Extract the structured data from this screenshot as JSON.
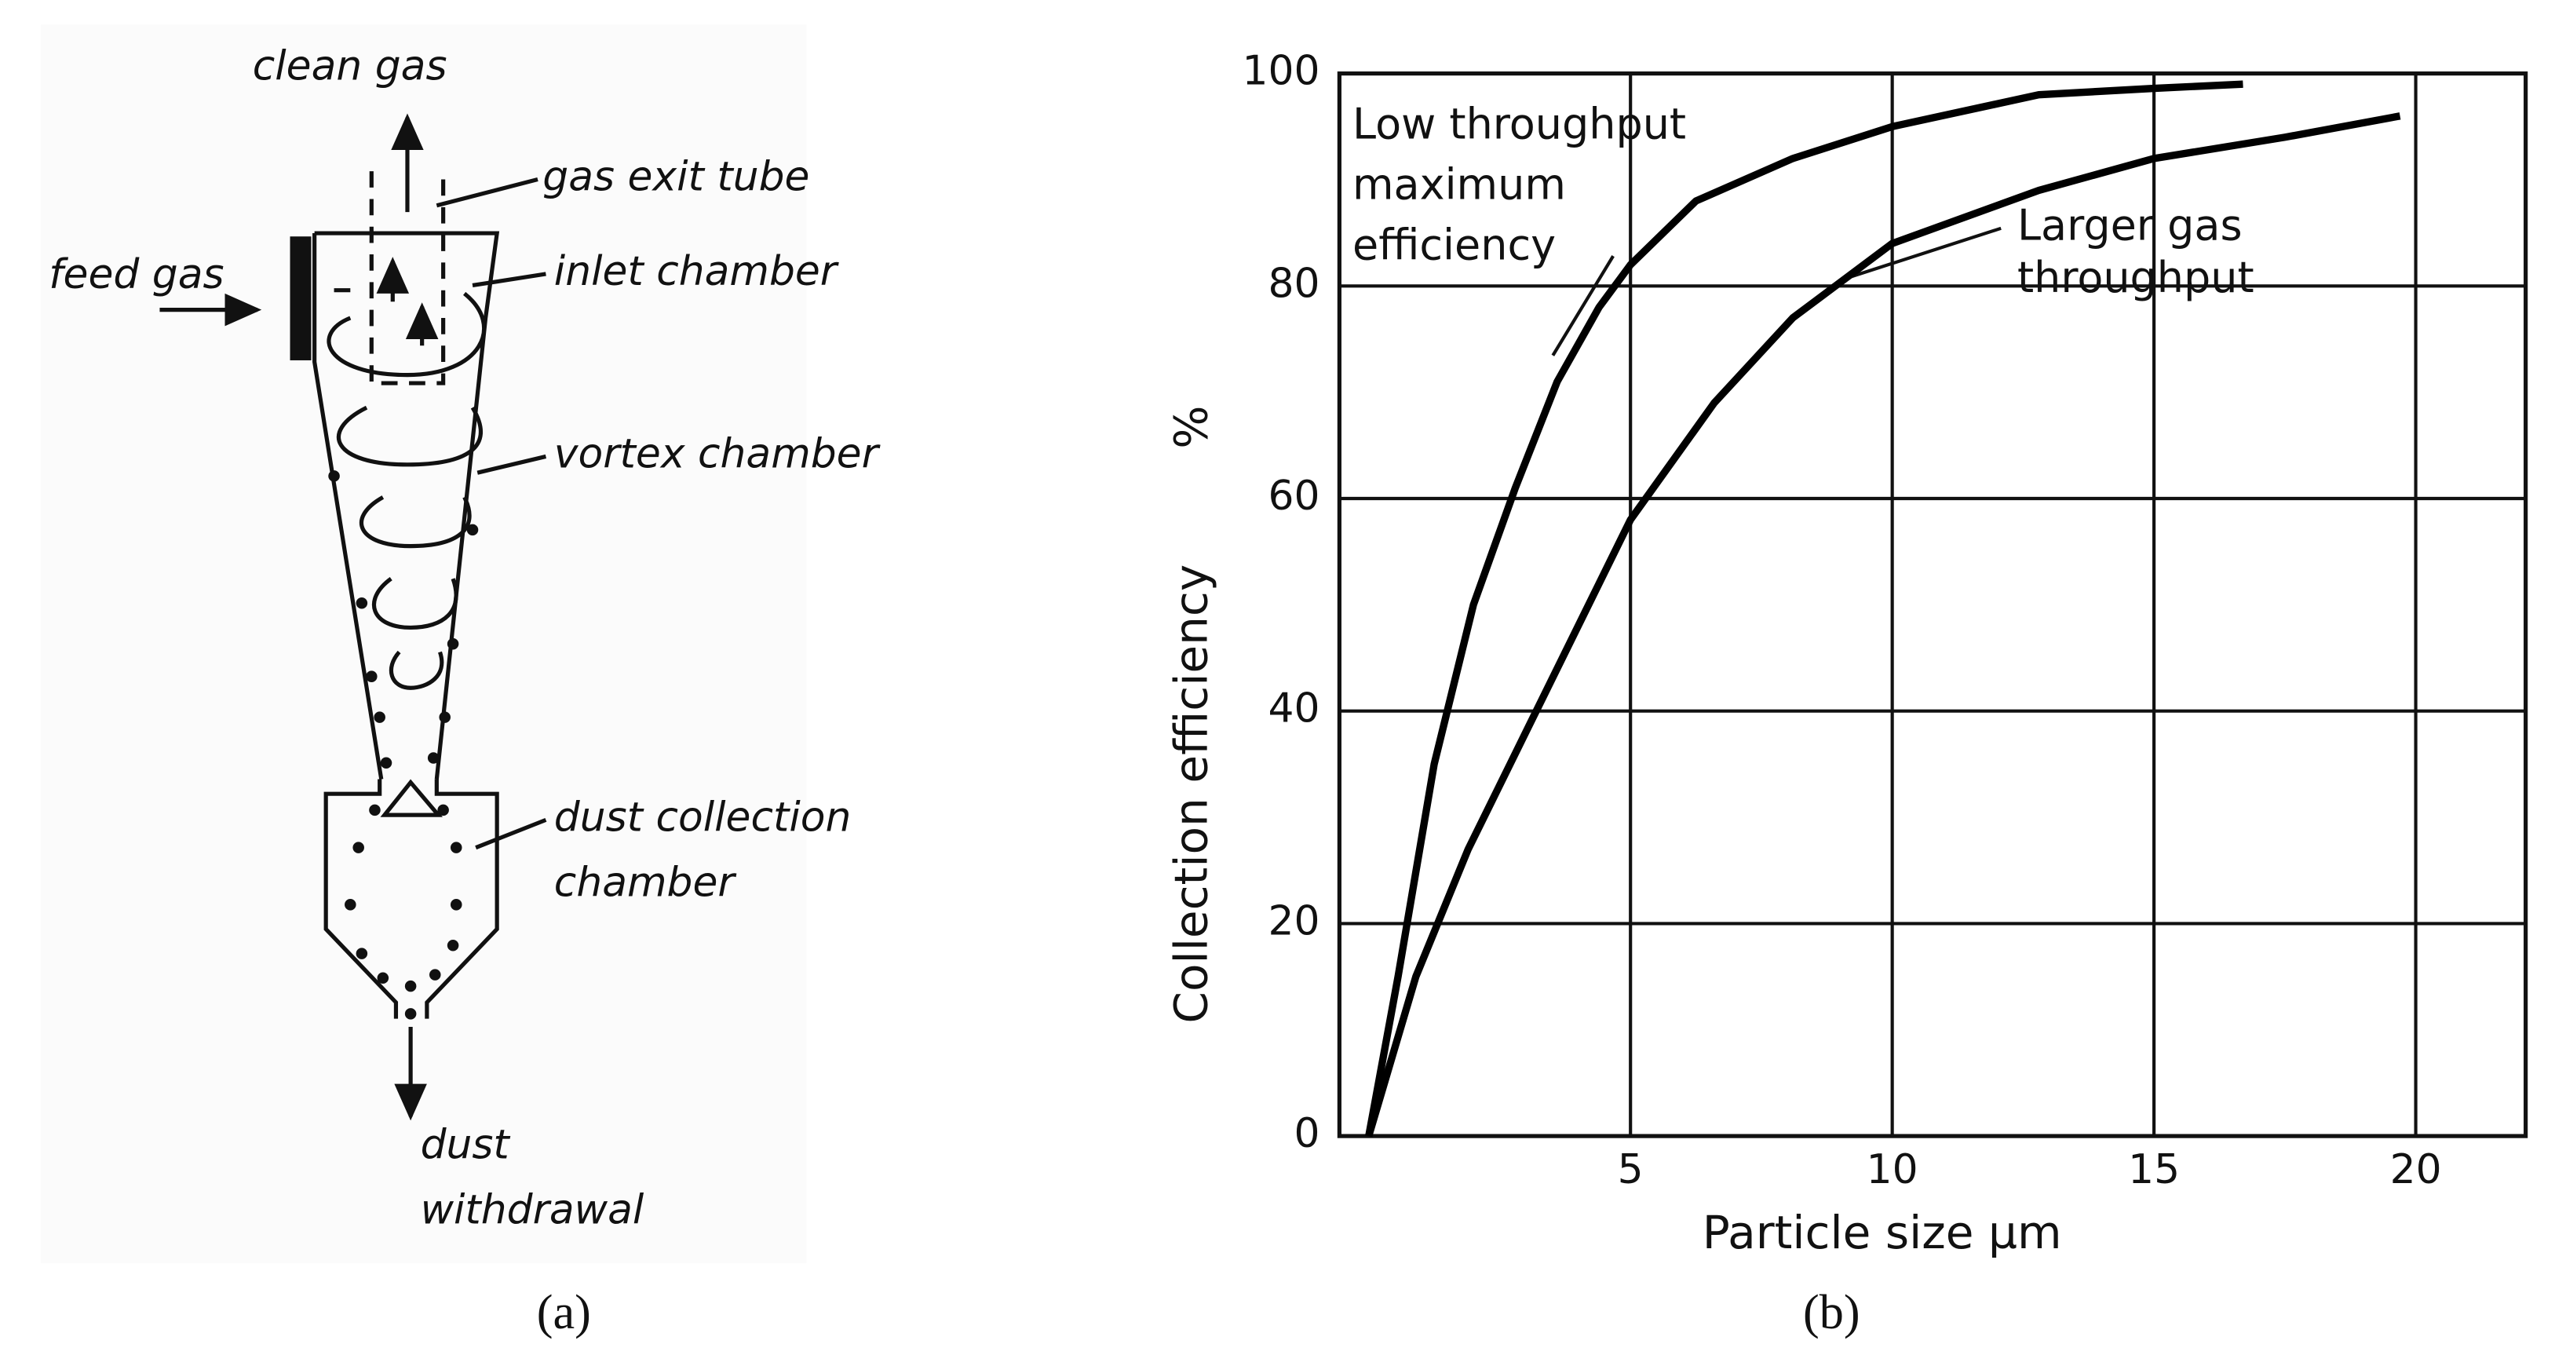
{
  "diagram": {
    "labels": [
      "clean gas",
      "gas exit tube",
      "feed gas",
      "inlet chamber",
      "vortex chamber",
      "dust collection",
      "chamber",
      "dust",
      "withdrawal"
    ]
  },
  "captions": [
    "(a)",
    "(b)"
  ],
  "chart_data": {
    "type": "line",
    "xlabel": "Particle size µm",
    "ylabel": "Collection efficiency",
    "yunit": "%",
    "annotations": [
      {
        "lines": [
          "Low throughput",
          "maximum",
          "efficiency"
        ]
      },
      {
        "lines": [
          "Larger gas",
          "throughput"
        ]
      }
    ],
    "series": [
      {
        "color": "#000000",
        "x": [
          0,
          0.56,
          1.25,
          2.0,
          2.8,
          3.6,
          4.4,
          5,
          6.25,
          8.1,
          10,
          12.8,
          15,
          16.7
        ],
        "values": [
          0,
          15,
          35,
          50,
          61,
          71,
          78,
          82,
          88,
          92,
          95,
          98,
          98.6,
          99
        ]
      },
      {
        "color": "#000000",
        "x": [
          0,
          0.9,
          1.9,
          3.1,
          5,
          6.6,
          8.1,
          10,
          12.8,
          15,
          17.5,
          19.7
        ],
        "values": [
          0,
          15,
          27,
          39,
          58,
          69,
          77,
          84,
          89,
          92,
          94,
          96
        ]
      }
    ],
    "xlim": [
      -0.56,
      22.1
    ],
    "xticks": [
      5,
      10,
      15,
      20
    ],
    "ylim": [
      0,
      100
    ],
    "yticks": [
      0,
      20,
      40,
      60,
      80,
      100
    ],
    "grid": true
  }
}
